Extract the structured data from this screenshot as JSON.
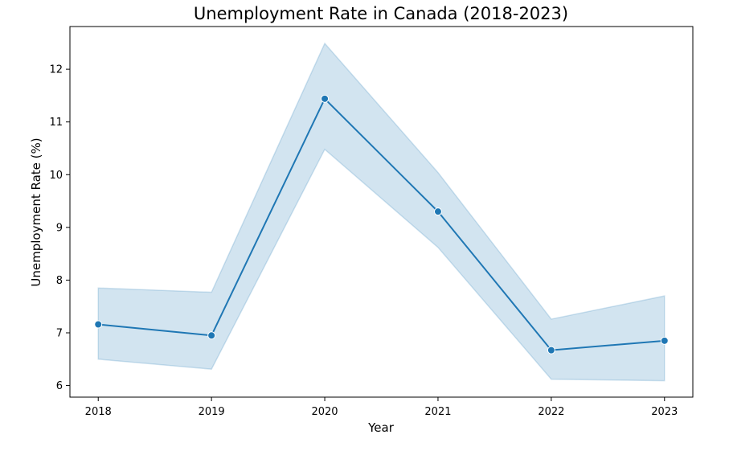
{
  "chart_data": {
    "type": "line",
    "title": "Unemployment Rate in Canada (2018-2023)",
    "xlabel": "Year",
    "ylabel": "Unemployment Rate (%)",
    "x": [
      2018,
      2019,
      2020,
      2021,
      2022,
      2023
    ],
    "x_tick_labels": [
      "2018",
      "2019",
      "2020",
      "2021",
      "2022",
      "2023"
    ],
    "y_ticks": [
      6,
      7,
      8,
      9,
      10,
      11,
      12
    ],
    "y_tick_labels": [
      "6",
      "7",
      "8",
      "9",
      "10",
      "11",
      "12"
    ],
    "xlim": [
      2017.75,
      2023.25
    ],
    "ylim": [
      5.78,
      12.81
    ],
    "grid": false,
    "series": [
      {
        "values": [
          7.16,
          6.95,
          11.44,
          9.3,
          6.67,
          6.85
        ],
        "band_upper": [
          7.85,
          7.77,
          12.49,
          10.04,
          7.26,
          7.7
        ],
        "band_lower": [
          6.5,
          6.31,
          10.48,
          8.62,
          6.12,
          6.09
        ],
        "color": "#1f77b4",
        "band_color": "#1f77b4"
      }
    ]
  }
}
